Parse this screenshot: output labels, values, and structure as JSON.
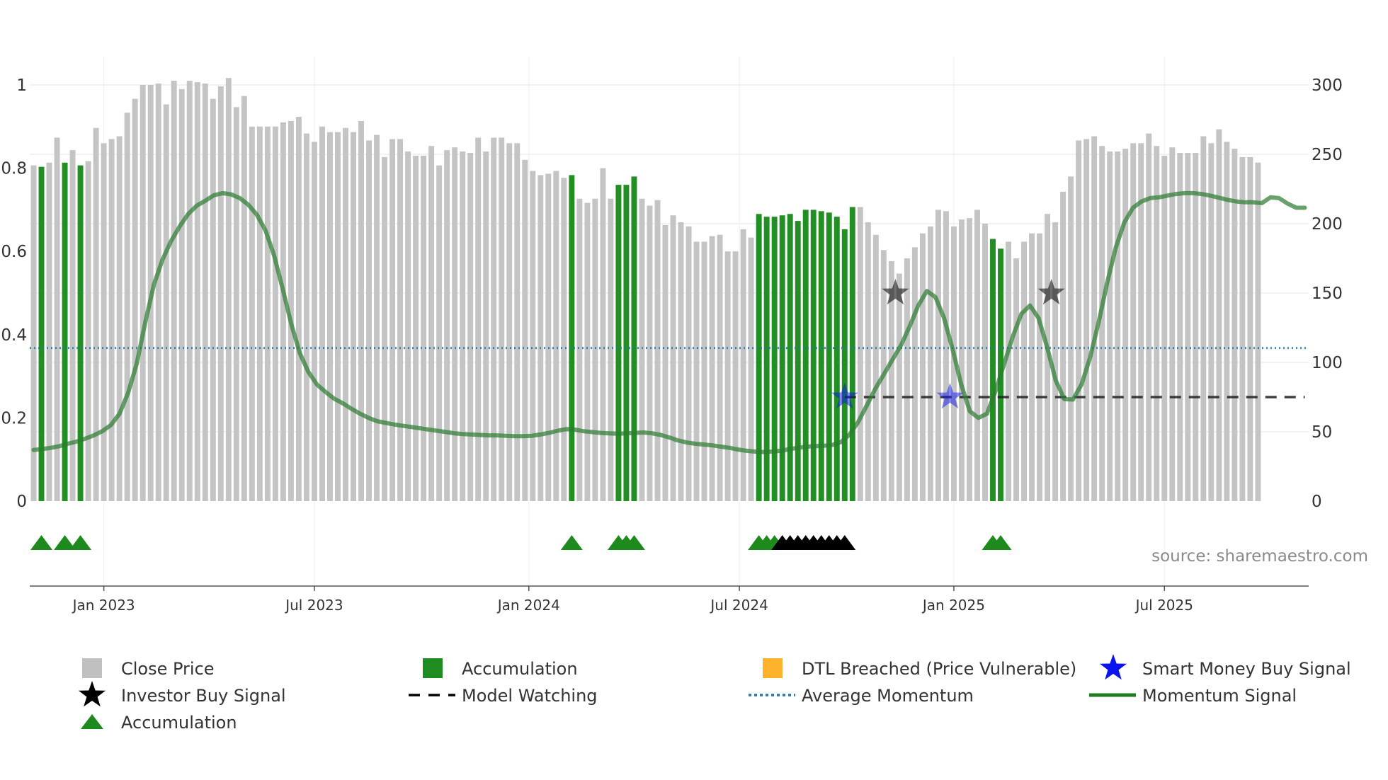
{
  "chart_data": {
    "type": "bar",
    "source_label": "source: sharemaestro.com",
    "left_axis": {
      "range": [
        0,
        1
      ],
      "ticks": [
        "0",
        "0.2",
        "0.4",
        "0.6",
        "0.8",
        "1"
      ]
    },
    "right_axis": {
      "range": [
        0,
        300
      ],
      "ticks": [
        "0",
        "50",
        "100",
        "150",
        "200",
        "250",
        "300"
      ]
    },
    "x_axis": {
      "ticks": [
        "Jan 2023",
        "Jul 2023",
        "Jan 2024",
        "Jul 2024",
        "Jan 2025",
        "Jul 2025"
      ]
    },
    "weeks_total": 164,
    "week_tick_index": [
      9,
      36,
      63.5,
      90.5,
      118,
      145
    ],
    "close_price": [
      242,
      241,
      244,
      262,
      244,
      253,
      242,
      245,
      269,
      258,
      261,
      263,
      280,
      290,
      300,
      300,
      301,
      286,
      303,
      297,
      303,
      302,
      301,
      290,
      299,
      305,
      284,
      292,
      270,
      270,
      270,
      270,
      273,
      274,
      277,
      265,
      259,
      270,
      266,
      266,
      269,
      266,
      274,
      260,
      264,
      248,
      261,
      261,
      252,
      249,
      249,
      256,
      242,
      253,
      255,
      252,
      251,
      262,
      252,
      262,
      262,
      258,
      258,
      246,
      238,
      235,
      236,
      238,
      233,
      235,
      218,
      215,
      218,
      240,
      218,
      228,
      228,
      234,
      218,
      213,
      217,
      199,
      206,
      201,
      198,
      187,
      187,
      191,
      192,
      180,
      180,
      196,
      190,
      207,
      205,
      205,
      206,
      207,
      202,
      210,
      210,
      209,
      208,
      205,
      196,
      212,
      212,
      201,
      192,
      181,
      173,
      164,
      175,
      183,
      193,
      198,
      210,
      209,
      198,
      203,
      204,
      210,
      200,
      189,
      182,
      187,
      175,
      187,
      193,
      193,
      207,
      201,
      223,
      234,
      260,
      261,
      263,
      256,
      252,
      252,
      254,
      258,
      258,
      265,
      256,
      249,
      255,
      251,
      251,
      251,
      263,
      258,
      268,
      259,
      254,
      248,
      248,
      244
    ],
    "accumulation_bars": [
      1,
      4,
      6,
      69,
      75,
      76,
      77,
      93,
      94,
      95,
      96,
      97,
      98,
      99,
      100,
      101,
      102,
      103,
      104,
      105,
      123,
      124
    ],
    "momentum": [
      0.123,
      0.125,
      0.128,
      0.132,
      0.138,
      0.143,
      0.15,
      0.158,
      0.168,
      0.183,
      0.21,
      0.26,
      0.33,
      0.43,
      0.52,
      0.58,
      0.625,
      0.66,
      0.69,
      0.71,
      0.722,
      0.735,
      0.74,
      0.737,
      0.728,
      0.712,
      0.688,
      0.65,
      0.59,
      0.51,
      0.425,
      0.355,
      0.31,
      0.28,
      0.262,
      0.246,
      0.235,
      0.222,
      0.21,
      0.2,
      0.192,
      0.188,
      0.184,
      0.181,
      0.178,
      0.175,
      0.172,
      0.169,
      0.166,
      0.163,
      0.161,
      0.16,
      0.159,
      0.158,
      0.158,
      0.157,
      0.156,
      0.156,
      0.157,
      0.16,
      0.164,
      0.169,
      0.173,
      0.172,
      0.168,
      0.166,
      0.164,
      0.163,
      0.162,
      0.163,
      0.164,
      0.165,
      0.163,
      0.159,
      0.153,
      0.146,
      0.141,
      0.138,
      0.136,
      0.134,
      0.131,
      0.128,
      0.124,
      0.121,
      0.119,
      0.118,
      0.119,
      0.121,
      0.125,
      0.128,
      0.131,
      0.132,
      0.133,
      0.135,
      0.142,
      0.16,
      0.19,
      0.23,
      0.27,
      0.305,
      0.34,
      0.375,
      0.42,
      0.47,
      0.505,
      0.49,
      0.44,
      0.365,
      0.28,
      0.216,
      0.2,
      0.21,
      0.265,
      0.33,
      0.395,
      0.45,
      0.47,
      0.44,
      0.37,
      0.29,
      0.245,
      0.244,
      0.28,
      0.345,
      0.43,
      0.525,
      0.61,
      0.67,
      0.705,
      0.72,
      0.728,
      0.73,
      0.734,
      0.738,
      0.74,
      0.74,
      0.738,
      0.734,
      0.729,
      0.724,
      0.72,
      0.718,
      0.718,
      0.716,
      0.73,
      0.728,
      0.715,
      0.705,
      0.705
    ],
    "momentum_x_end": 163,
    "average_momentum": 0.368,
    "model_watching": {
      "level": 0.25,
      "segments": [
        [
          104,
          163
        ]
      ]
    },
    "investor_buy_signals": [
      {
        "week": 110.5,
        "value": 0.5
      },
      {
        "week": 130.5,
        "value": 0.5
      }
    ],
    "smart_money_buy_signals": [
      {
        "week": 104,
        "value": 0.25
      },
      {
        "week": 117.5,
        "value": 0.25
      }
    ],
    "accumulation_markers_green": [
      1,
      4,
      6,
      69,
      75,
      76,
      77,
      93,
      94,
      95,
      123,
      124
    ],
    "accumulation_markers_black": [
      96,
      97,
      98,
      99,
      100,
      101,
      102,
      103,
      104
    ],
    "colors": {
      "close_price": "#c4c4c4",
      "accumulation": "#238e23",
      "momentum": "#2e7d32",
      "average_momentum": "#1f77b4",
      "model_watching": "#222222",
      "dtl_breached": "#ffb22b",
      "smart_money": "#0a14ee",
      "investor": "#111111",
      "marker_green": "#1e8a1e"
    },
    "legend": [
      {
        "label": "Close Price",
        "icon": "square",
        "color": "#c0c0c0"
      },
      {
        "label": "Accumulation",
        "icon": "square",
        "color": "#1f8c1f"
      },
      {
        "label": "DTL Breached (Price Vulnerable)",
        "icon": "square",
        "color": "#ffb22b"
      },
      {
        "label": "Smart Money Buy Signal",
        "icon": "star",
        "color": "#0a14ee"
      },
      {
        "label": "Investor Buy Signal",
        "icon": "star",
        "color": "#000000"
      },
      {
        "label": "Model Watching",
        "icon": "dash",
        "color": "#000000"
      },
      {
        "label": "Average Momentum",
        "icon": "dot",
        "color": "#1f77b4"
      },
      {
        "label": "Momentum Signal",
        "icon": "line",
        "color": "#1e7b1e"
      },
      {
        "label": "Accumulation",
        "icon": "triangle",
        "color": "#1e8a1e"
      }
    ]
  }
}
